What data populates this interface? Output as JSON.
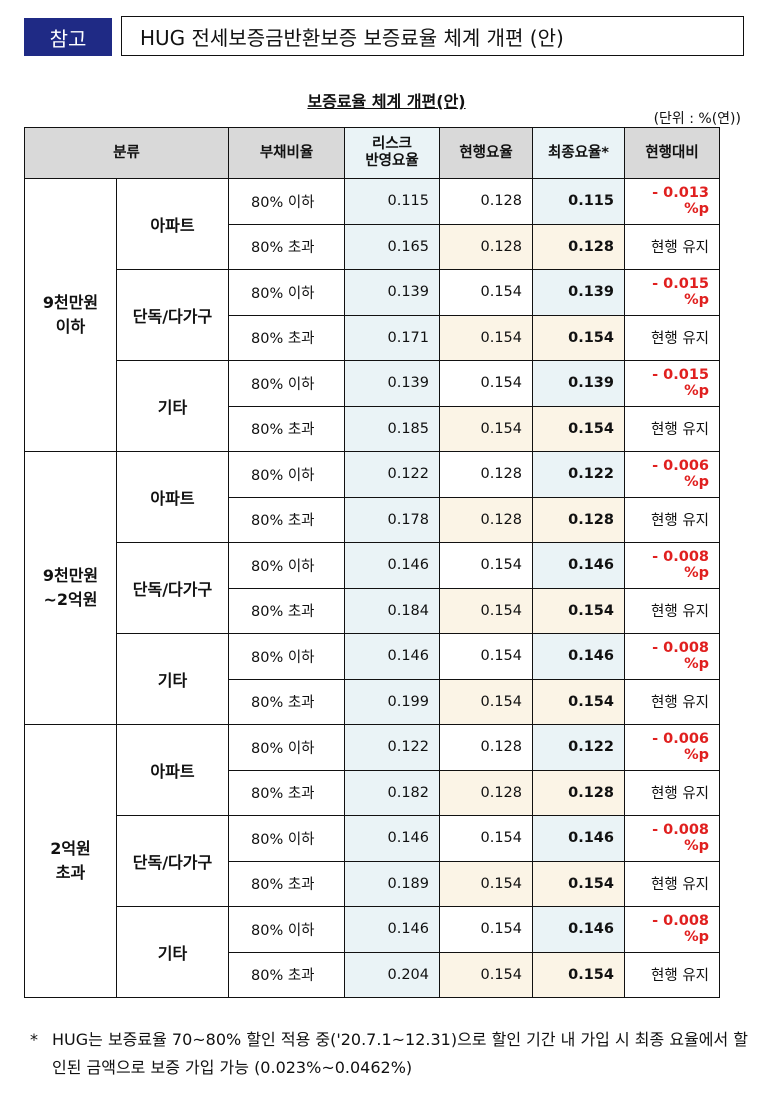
{
  "header": {
    "badge": "참고",
    "title": "HUG 전세보증금반환보증 보증료율 체계 개편 (안)"
  },
  "subtitle": "보증료율 체계 개편(안)",
  "unit": "(단위 : %(연))",
  "table": {
    "headers": {
      "category": "분류",
      "debt_ratio": "부채비율",
      "risk_rate": "리스크\n반영요율",
      "current_rate": "현행요율",
      "final_rate": "최종요율*",
      "vs_current": "현행대비"
    },
    "groups": [
      {
        "label": "9천만원\n이하",
        "types": [
          {
            "label": "아파트",
            "rows": [
              {
                "ratio": "80% 이하",
                "risk": "0.115",
                "current": "0.128",
                "final": "0.115",
                "diff": "- 0.013 %p"
              },
              {
                "ratio": "80% 초과",
                "risk": "0.165",
                "current": "0.128",
                "final": "0.128",
                "diff": "현행 유지"
              }
            ]
          },
          {
            "label": "단독/다가구",
            "rows": [
              {
                "ratio": "80% 이하",
                "risk": "0.139",
                "current": "0.154",
                "final": "0.139",
                "diff": "- 0.015 %p"
              },
              {
                "ratio": "80% 초과",
                "risk": "0.171",
                "current": "0.154",
                "final": "0.154",
                "diff": "현행 유지"
              }
            ]
          },
          {
            "label": "기타",
            "rows": [
              {
                "ratio": "80% 이하",
                "risk": "0.139",
                "current": "0.154",
                "final": "0.139",
                "diff": "- 0.015 %p"
              },
              {
                "ratio": "80% 초과",
                "risk": "0.185",
                "current": "0.154",
                "final": "0.154",
                "diff": "현행 유지"
              }
            ]
          }
        ]
      },
      {
        "label": "9천만원\n~2억원",
        "types": [
          {
            "label": "아파트",
            "rows": [
              {
                "ratio": "80% 이하",
                "risk": "0.122",
                "current": "0.128",
                "final": "0.122",
                "diff": "- 0.006 %p"
              },
              {
                "ratio": "80% 초과",
                "risk": "0.178",
                "current": "0.128",
                "final": "0.128",
                "diff": "현행 유지"
              }
            ]
          },
          {
            "label": "단독/다가구",
            "rows": [
              {
                "ratio": "80% 이하",
                "risk": "0.146",
                "current": "0.154",
                "final": "0.146",
                "diff": "- 0.008 %p"
              },
              {
                "ratio": "80% 초과",
                "risk": "0.184",
                "current": "0.154",
                "final": "0.154",
                "diff": "현행 유지"
              }
            ]
          },
          {
            "label": "기타",
            "rows": [
              {
                "ratio": "80% 이하",
                "risk": "0.146",
                "current": "0.154",
                "final": "0.146",
                "diff": "- 0.008 %p"
              },
              {
                "ratio": "80% 초과",
                "risk": "0.199",
                "current": "0.154",
                "final": "0.154",
                "diff": "현행 유지"
              }
            ]
          }
        ]
      },
      {
        "label": "2억원\n초과",
        "types": [
          {
            "label": "아파트",
            "rows": [
              {
                "ratio": "80% 이하",
                "risk": "0.122",
                "current": "0.128",
                "final": "0.122",
                "diff": "- 0.006 %p"
              },
              {
                "ratio": "80% 초과",
                "risk": "0.182",
                "current": "0.128",
                "final": "0.128",
                "diff": "현행 유지"
              }
            ]
          },
          {
            "label": "단독/다가구",
            "rows": [
              {
                "ratio": "80% 이하",
                "risk": "0.146",
                "current": "0.154",
                "final": "0.146",
                "diff": "- 0.008 %p"
              },
              {
                "ratio": "80% 초과",
                "risk": "0.189",
                "current": "0.154",
                "final": "0.154",
                "diff": "현행 유지"
              }
            ]
          },
          {
            "label": "기타",
            "rows": [
              {
                "ratio": "80% 이하",
                "risk": "0.146",
                "current": "0.154",
                "final": "0.146",
                "diff": "- 0.008 %p"
              },
              {
                "ratio": "80% 초과",
                "risk": "0.204",
                "current": "0.154",
                "final": "0.154",
                "diff": "현행 유지"
              }
            ]
          }
        ]
      }
    ]
  },
  "footnote": {
    "marker": "*",
    "text": "HUG는 보증료율 70~80% 할인 적용 중('20.7.1~12.31)으로 할인 기간 내 가입 시 최종 요율에서 할인된 금액으로 보증 가입 가능 (0.023%~0.0462%)"
  },
  "colors": {
    "badge": "#1f2a85",
    "header_bg": "#d9d9d9",
    "risk_bg": "#eaf3f6",
    "current_bg": "#fbf4e6",
    "decrease": "#e0201f"
  }
}
